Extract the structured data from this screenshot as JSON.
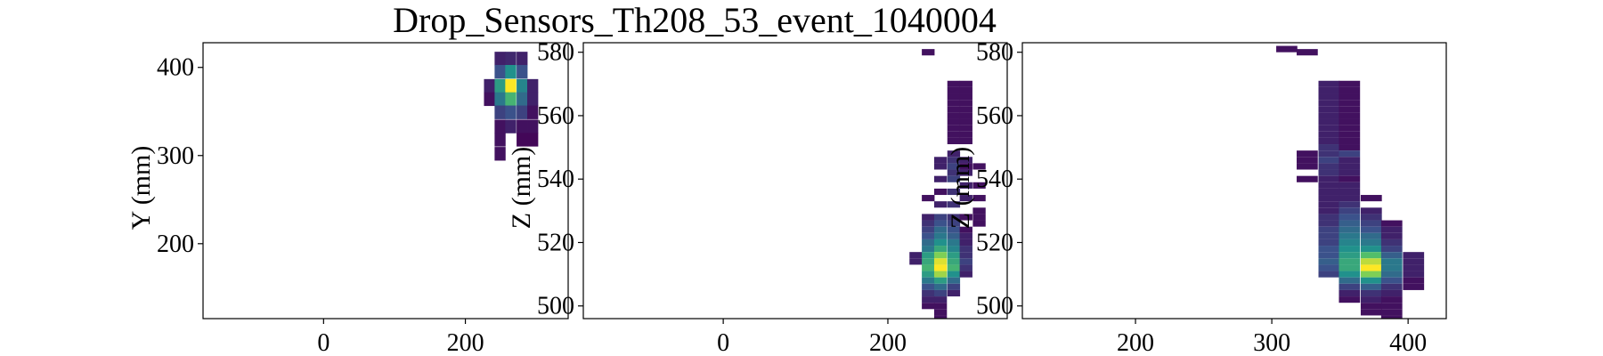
{
  "chart_data": {
    "title": "Drop_Sensors_Th208_53_event_1040004",
    "colormap": [
      "#440154",
      "#3b528b",
      "#21918c",
      "#5ec962",
      "#fde725"
    ],
    "panels": [
      {
        "type": "heatmap",
        "ylabel": "Y (mm)",
        "xlim": [
          -170,
          345
        ],
        "ylim": [
          115,
          428
        ],
        "xticks": [
          0,
          200
        ],
        "yticks": [
          200,
          300,
          400
        ],
        "bin_w": 15.5,
        "bin_h": 15.5,
        "cells": [
          [
            249,
            410,
            0.1
          ],
          [
            264,
            410,
            0.12
          ],
          [
            280,
            410,
            0.1
          ],
          [
            249,
            395,
            0.25
          ],
          [
            264,
            395,
            0.5
          ],
          [
            280,
            395,
            0.25
          ],
          [
            234,
            379,
            0.1
          ],
          [
            249,
            379,
            0.55
          ],
          [
            264,
            379,
            1.0
          ],
          [
            280,
            379,
            0.45
          ],
          [
            295,
            379,
            0.1
          ],
          [
            234,
            364,
            0.05
          ],
          [
            249,
            364,
            0.4
          ],
          [
            264,
            364,
            0.65
          ],
          [
            280,
            364,
            0.35
          ],
          [
            295,
            364,
            0.1
          ],
          [
            249,
            349,
            0.2
          ],
          [
            264,
            349,
            0.25
          ],
          [
            280,
            349,
            0.2
          ],
          [
            295,
            349,
            0.05
          ],
          [
            249,
            333,
            0.05
          ],
          [
            264,
            333,
            0.1
          ],
          [
            280,
            333,
            0.05
          ],
          [
            295,
            333,
            0.05
          ],
          [
            249,
            318,
            0.05
          ],
          [
            280,
            318,
            0.02
          ],
          [
            295,
            318,
            0.02
          ],
          [
            249,
            302,
            0.05
          ]
        ]
      },
      {
        "type": "heatmap",
        "ylabel": "Z (mm)",
        "xlim": [
          -170,
          345
        ],
        "ylim": [
          496,
          583
        ],
        "xticks": [
          0,
          200
        ],
        "yticks": [
          500,
          520,
          540,
          560,
          580
        ],
        "bin_w": 15.5,
        "bin_h": 2,
        "cells": [
          [
            249,
            580,
            0.05
          ],
          [
            280,
            570,
            0.05
          ],
          [
            295,
            570,
            0.05
          ],
          [
            280,
            568,
            0.05
          ],
          [
            295,
            568,
            0.05
          ],
          [
            280,
            566,
            0.05
          ],
          [
            295,
            566,
            0.05
          ],
          [
            280,
            564,
            0.05
          ],
          [
            295,
            564,
            0.05
          ],
          [
            280,
            562,
            0.05
          ],
          [
            295,
            562,
            0.05
          ],
          [
            280,
            560,
            0.05
          ],
          [
            295,
            560,
            0.05
          ],
          [
            280,
            558,
            0.05
          ],
          [
            295,
            558,
            0.05
          ],
          [
            280,
            556,
            0.05
          ],
          [
            295,
            556,
            0.05
          ],
          [
            280,
            554,
            0.05
          ],
          [
            295,
            554,
            0.05
          ],
          [
            280,
            552,
            0.05
          ],
          [
            295,
            552,
            0.05
          ],
          [
            280,
            548,
            0.1
          ],
          [
            264,
            546,
            0.1
          ],
          [
            280,
            546,
            0.15
          ],
          [
            295,
            546,
            0.1
          ],
          [
            264,
            544,
            0.1
          ],
          [
            280,
            544,
            0.2
          ],
          [
            295,
            544,
            0.05
          ],
          [
            311,
            544,
            0.05
          ],
          [
            280,
            542,
            0.15
          ],
          [
            295,
            542,
            0.1
          ],
          [
            264,
            540,
            0.1
          ],
          [
            280,
            540,
            0.2
          ],
          [
            295,
            538,
            0.1
          ],
          [
            311,
            538,
            0.05
          ],
          [
            264,
            536,
            0.05
          ],
          [
            280,
            536,
            0.15
          ],
          [
            249,
            534,
            0.05
          ],
          [
            295,
            534,
            0.1
          ],
          [
            311,
            534,
            0.05
          ],
          [
            264,
            532,
            0.1
          ],
          [
            280,
            532,
            0.15
          ],
          [
            311,
            530,
            0.05
          ],
          [
            249,
            528,
            0.1
          ],
          [
            264,
            528,
            0.2
          ],
          [
            280,
            528,
            0.15
          ],
          [
            295,
            528,
            0.05
          ],
          [
            311,
            528,
            0.05
          ],
          [
            249,
            526,
            0.15
          ],
          [
            264,
            526,
            0.25
          ],
          [
            280,
            526,
            0.2
          ],
          [
            311,
            526,
            0.05
          ],
          [
            249,
            524,
            0.2
          ],
          [
            264,
            524,
            0.35
          ],
          [
            280,
            524,
            0.25
          ],
          [
            295,
            524,
            0.05
          ],
          [
            249,
            522,
            0.25
          ],
          [
            264,
            522,
            0.4
          ],
          [
            280,
            522,
            0.3
          ],
          [
            295,
            522,
            0.1
          ],
          [
            249,
            520,
            0.35
          ],
          [
            264,
            520,
            0.5
          ],
          [
            280,
            520,
            0.4
          ],
          [
            295,
            520,
            0.1
          ],
          [
            249,
            518,
            0.4
          ],
          [
            264,
            518,
            0.6
          ],
          [
            280,
            518,
            0.45
          ],
          [
            295,
            518,
            0.15
          ],
          [
            234,
            516,
            0.1
          ],
          [
            249,
            516,
            0.55
          ],
          [
            264,
            516,
            0.8
          ],
          [
            280,
            516,
            0.55
          ],
          [
            295,
            516,
            0.15
          ],
          [
            234,
            514,
            0.1
          ],
          [
            249,
            514,
            0.6
          ],
          [
            264,
            514,
            0.95
          ],
          [
            280,
            514,
            0.6
          ],
          [
            295,
            514,
            0.2
          ],
          [
            249,
            512,
            0.65
          ],
          [
            264,
            512,
            1.0
          ],
          [
            280,
            512,
            0.65
          ],
          [
            295,
            512,
            0.15
          ],
          [
            249,
            510,
            0.55
          ],
          [
            264,
            510,
            0.85
          ],
          [
            280,
            510,
            0.5
          ],
          [
            295,
            510,
            0.1
          ],
          [
            249,
            508,
            0.4
          ],
          [
            264,
            508,
            0.55
          ],
          [
            280,
            508,
            0.35
          ],
          [
            249,
            506,
            0.25
          ],
          [
            264,
            506,
            0.35
          ],
          [
            280,
            506,
            0.2
          ],
          [
            249,
            504,
            0.15
          ],
          [
            264,
            504,
            0.2
          ],
          [
            280,
            504,
            0.1
          ],
          [
            249,
            502,
            0.1
          ],
          [
            264,
            502,
            0.1
          ],
          [
            249,
            500,
            0.05
          ],
          [
            264,
            500,
            0.05
          ],
          [
            264,
            498,
            0.05
          ],
          [
            264,
            496,
            0.05
          ]
        ]
      },
      {
        "type": "heatmap",
        "ylabel": "Z (mm)",
        "xlim": [
          117,
          428
        ],
        "ylim": [
          496,
          583
        ],
        "xticks": [
          200,
          300,
          400
        ],
        "yticks": [
          500,
          520,
          540,
          560,
          580
        ],
        "bin_w": 15.5,
        "bin_h": 2,
        "cells": [
          [
            311,
            581,
            0.05
          ],
          [
            326,
            580,
            0.05
          ],
          [
            342,
            570,
            0.1
          ],
          [
            357,
            570,
            0.05
          ],
          [
            342,
            568,
            0.1
          ],
          [
            357,
            568,
            0.05
          ],
          [
            342,
            566,
            0.1
          ],
          [
            357,
            566,
            0.05
          ],
          [
            342,
            564,
            0.1
          ],
          [
            357,
            564,
            0.05
          ],
          [
            342,
            562,
            0.1
          ],
          [
            357,
            562,
            0.05
          ],
          [
            342,
            560,
            0.1
          ],
          [
            357,
            560,
            0.05
          ],
          [
            342,
            558,
            0.1
          ],
          [
            357,
            558,
            0.05
          ],
          [
            342,
            556,
            0.1
          ],
          [
            357,
            556,
            0.05
          ],
          [
            342,
            554,
            0.1
          ],
          [
            357,
            554,
            0.05
          ],
          [
            342,
            552,
            0.1
          ],
          [
            357,
            552,
            0.05
          ],
          [
            342,
            550,
            0.15
          ],
          [
            357,
            550,
            0.05
          ],
          [
            326,
            548,
            0.05
          ],
          [
            342,
            548,
            0.15
          ],
          [
            357,
            548,
            0.2
          ],
          [
            326,
            546,
            0.05
          ],
          [
            342,
            546,
            0.2
          ],
          [
            357,
            546,
            0.1
          ],
          [
            326,
            544,
            0.05
          ],
          [
            342,
            544,
            0.15
          ],
          [
            357,
            544,
            0.1
          ],
          [
            342,
            542,
            0.15
          ],
          [
            357,
            542,
            0.1
          ],
          [
            326,
            540,
            0.05
          ],
          [
            342,
            540,
            0.1
          ],
          [
            357,
            540,
            0.05
          ],
          [
            342,
            538,
            0.1
          ],
          [
            357,
            538,
            0.1
          ],
          [
            342,
            536,
            0.1
          ],
          [
            357,
            536,
            0.1
          ],
          [
            342,
            534,
            0.1
          ],
          [
            357,
            534,
            0.1
          ],
          [
            373,
            534,
            0.05
          ],
          [
            342,
            532,
            0.1
          ],
          [
            357,
            532,
            0.15
          ],
          [
            342,
            530,
            0.1
          ],
          [
            357,
            530,
            0.2
          ],
          [
            373,
            530,
            0.1
          ],
          [
            342,
            528,
            0.15
          ],
          [
            357,
            528,
            0.25
          ],
          [
            373,
            528,
            0.15
          ],
          [
            342,
            526,
            0.15
          ],
          [
            357,
            526,
            0.3
          ],
          [
            373,
            526,
            0.2
          ],
          [
            388,
            526,
            0.05
          ],
          [
            342,
            524,
            0.2
          ],
          [
            357,
            524,
            0.35
          ],
          [
            373,
            524,
            0.25
          ],
          [
            388,
            524,
            0.1
          ],
          [
            342,
            522,
            0.2
          ],
          [
            357,
            522,
            0.4
          ],
          [
            373,
            522,
            0.35
          ],
          [
            388,
            522,
            0.1
          ],
          [
            342,
            520,
            0.2
          ],
          [
            357,
            520,
            0.45
          ],
          [
            373,
            520,
            0.4
          ],
          [
            388,
            520,
            0.15
          ],
          [
            342,
            518,
            0.25
          ],
          [
            357,
            518,
            0.5
          ],
          [
            373,
            518,
            0.5
          ],
          [
            388,
            518,
            0.2
          ],
          [
            342,
            516,
            0.25
          ],
          [
            357,
            516,
            0.55
          ],
          [
            373,
            516,
            0.7
          ],
          [
            388,
            516,
            0.3
          ],
          [
            404,
            516,
            0.1
          ],
          [
            342,
            514,
            0.3
          ],
          [
            357,
            514,
            0.6
          ],
          [
            373,
            514,
            0.9
          ],
          [
            388,
            514,
            0.4
          ],
          [
            404,
            514,
            0.1
          ],
          [
            342,
            512,
            0.25
          ],
          [
            357,
            512,
            0.6
          ],
          [
            373,
            512,
            1.0
          ],
          [
            388,
            512,
            0.4
          ],
          [
            404,
            512,
            0.1
          ],
          [
            342,
            510,
            0.2
          ],
          [
            357,
            510,
            0.5
          ],
          [
            373,
            510,
            0.8
          ],
          [
            388,
            510,
            0.35
          ],
          [
            404,
            510,
            0.1
          ],
          [
            357,
            508,
            0.35
          ],
          [
            373,
            508,
            0.5
          ],
          [
            388,
            508,
            0.25
          ],
          [
            404,
            508,
            0.05
          ],
          [
            357,
            506,
            0.2
          ],
          [
            373,
            506,
            0.3
          ],
          [
            388,
            506,
            0.15
          ],
          [
            404,
            506,
            0.05
          ],
          [
            357,
            504,
            0.1
          ],
          [
            373,
            504,
            0.15
          ],
          [
            388,
            504,
            0.1
          ],
          [
            357,
            502,
            0.05
          ],
          [
            373,
            502,
            0.1
          ],
          [
            388,
            502,
            0.05
          ],
          [
            373,
            500,
            0.05
          ],
          [
            388,
            500,
            0.05
          ],
          [
            373,
            498,
            0.05
          ],
          [
            388,
            498,
            0.05
          ],
          [
            388,
            496,
            0.05
          ]
        ]
      }
    ]
  }
}
